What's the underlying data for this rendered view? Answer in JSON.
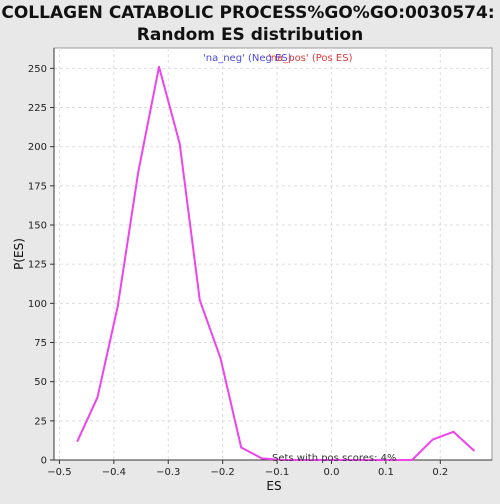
{
  "chart_data": {
    "type": "line",
    "title_lines": [
      "COLLAGEN CATABOLIC PROCESS%GO%GO:0030574:",
      "Random ES distribution"
    ],
    "xlabel": "ES",
    "ylabel": "P(ES)",
    "xlim": [
      -0.51,
      0.295
    ],
    "ylim": [
      0,
      263
    ],
    "x_ticks": [
      -0.5,
      -0.4,
      -0.3,
      -0.2,
      -0.1,
      0.0,
      0.1,
      0.2
    ],
    "x_tick_labels": [
      "−0.5",
      "−0.4",
      "−0.3",
      "−0.2",
      "−0.1",
      "0.0",
      "0.1",
      "0.2"
    ],
    "y_ticks": [
      0,
      25,
      50,
      75,
      100,
      125,
      150,
      175,
      200,
      225,
      250
    ],
    "y_tick_labels": [
      "0",
      "25",
      "50",
      "75",
      "100",
      "125",
      "150",
      "175",
      "200",
      "225",
      "250"
    ],
    "grid": true,
    "legend": {
      "placement": "top-center",
      "entries": [
        {
          "label": "'na_neg' (Neg ES)",
          "color": "#4a4ae0"
        },
        {
          "label": "'na_pos' (Pos ES)",
          "color": "#e03a3a"
        }
      ]
    },
    "annotation": "Sets with pos scores: 4%",
    "series": [
      {
        "color": "#ee44ee",
        "points": [
          [
            -0.467,
            12
          ],
          [
            -0.43,
            40
          ],
          [
            -0.393,
            98
          ],
          [
            -0.355,
            184
          ],
          [
            -0.317,
            251
          ],
          [
            -0.279,
            202
          ],
          [
            -0.242,
            102
          ],
          [
            -0.204,
            65
          ],
          [
            -0.166,
            8
          ],
          [
            -0.128,
            1
          ],
          [
            -0.09,
            0
          ],
          [
            -0.053,
            0
          ],
          [
            -0.015,
            0
          ],
          [
            0.023,
            0
          ],
          [
            0.061,
            0
          ],
          [
            0.099,
            0
          ],
          [
            0.136,
            0
          ],
          [
            0.148,
            0
          ],
          [
            0.186,
            13
          ],
          [
            0.224,
            18
          ],
          [
            0.262,
            6
          ]
        ]
      }
    ]
  }
}
